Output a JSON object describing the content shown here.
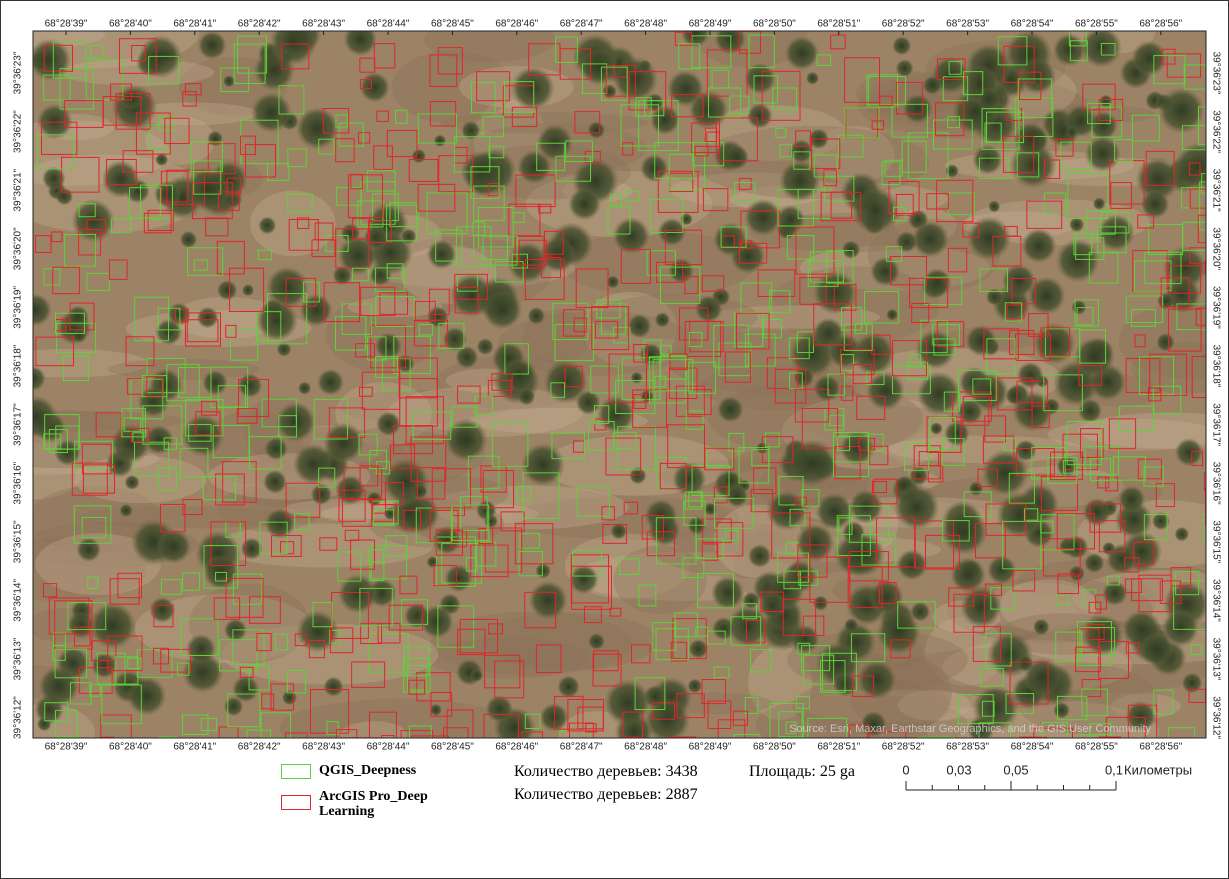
{
  "map": {
    "longitude_labels": [
      "68°28'39\"",
      "68°28'40\"",
      "68°28'41\"",
      "68°28'42\"",
      "68°28'43\"",
      "68°28'44\"",
      "68°28'45\"",
      "68°28'46\"",
      "68°28'47\"",
      "68°28'48\"",
      "68°28'49\"",
      "68°28'50\"",
      "68°28'51\"",
      "68°28'52\"",
      "68°28'53\"",
      "68°28'54\"",
      "68°28'55\"",
      "68°28'56\""
    ],
    "latitude_labels": [
      "39°36'23\"",
      "39°36'22\"",
      "39°36'21\"",
      "39°36'20\"",
      "39°36'19\"",
      "39°36'18\"",
      "39°36'17\"",
      "39°36'16\"",
      "39°36'15\"",
      "39°36'14\"",
      "39°36'13\"",
      "39°36'12\""
    ],
    "attribution": "Source: Esri, Maxar, Earthstar Geographics, and the GIS User Community"
  },
  "legend": {
    "items": [
      {
        "label": "QGIS_Deepness",
        "color": "#5fd23a"
      },
      {
        "label": "ArcGIS Pro_Deep Learning",
        "color": "#e0262a"
      }
    ]
  },
  "stats": {
    "counts": [
      "Количество деревьев: 3438",
      "Количество деревьев: 2887"
    ],
    "area": "Площадь: 25 ga"
  },
  "scale_bar": {
    "labels": [
      "0",
      "0,03",
      "0,05",
      "0,1"
    ],
    "unit": "Километры"
  }
}
